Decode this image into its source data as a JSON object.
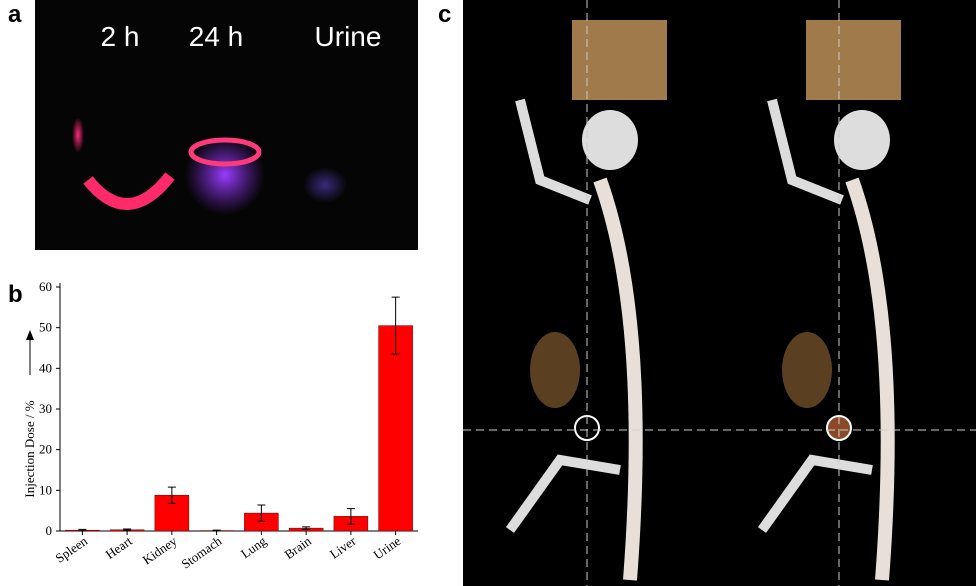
{
  "panel_labels": [
    "a",
    "b",
    "c"
  ],
  "photo_labels": [
    "2 h",
    "24 h",
    "Urine"
  ],
  "chart_data": {
    "type": "bar",
    "y_label": "Injection Dose / %",
    "categories": [
      "Spleen",
      "Heart",
      "Kidney",
      "Stomach",
      "Lung",
      "Brain",
      "Liver",
      "Urine"
    ],
    "values": [
      0.2,
      0.3,
      8.8,
      0.1,
      4.4,
      0.7,
      3.6,
      50.5
    ],
    "errors": [
      0.2,
      0.2,
      2,
      0.1,
      2,
      0.3,
      1.9,
      7
    ],
    "color": "#ff0000",
    "ylim": [
      0,
      60
    ],
    "yticks": [
      0,
      10,
      20,
      30,
      40,
      50,
      60
    ]
  }
}
